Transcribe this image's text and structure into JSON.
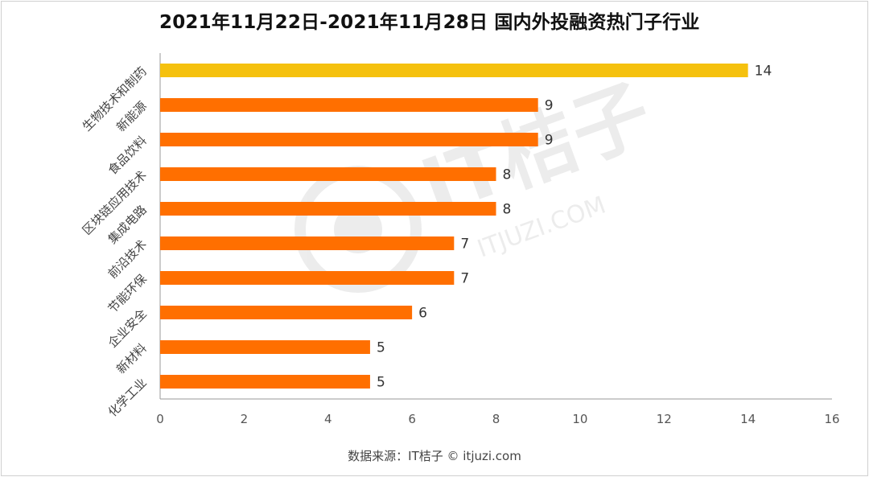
{
  "title": "2021年11月22日-2021年11月28日 国内外投融资热门子行业",
  "source": "数据来源：IT桔子 © itjuzi.com",
  "watermark": {
    "brand": "IT桔子",
    "domain": "ITJUZI.COM"
  },
  "colors": {
    "highlight": "#F5C10E",
    "bar": "#FF6F00",
    "axis": "#999999",
    "text": "#333333"
  },
  "chart_data": {
    "type": "bar",
    "orientation": "horizontal",
    "categories": [
      "生物技术和制药",
      "新能源",
      "食品饮料",
      "区块链应用技术",
      "集成电路",
      "前沿技术",
      "节能环保",
      "企业安全",
      "新材料",
      "化学工业"
    ],
    "values": [
      14,
      9,
      9,
      8,
      8,
      7,
      7,
      6,
      5,
      5
    ],
    "xlim": [
      0,
      16
    ],
    "xticks": [
      0,
      2,
      4,
      6,
      8,
      10,
      12,
      14,
      16
    ],
    "grid": false,
    "legend": "none"
  }
}
